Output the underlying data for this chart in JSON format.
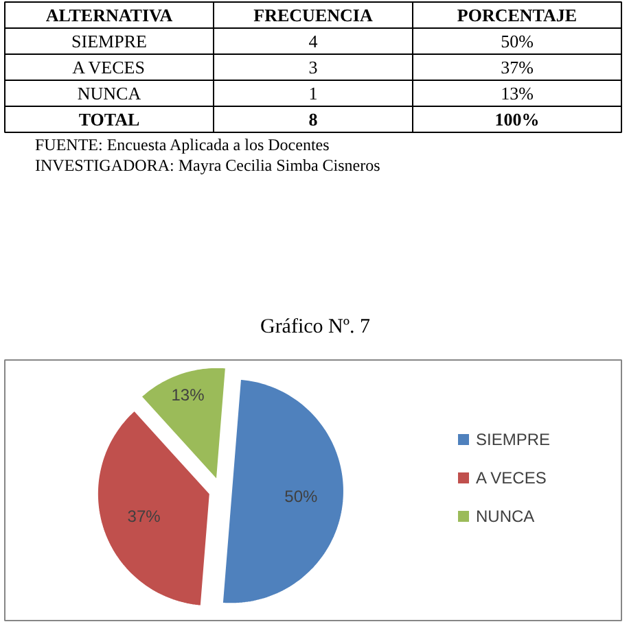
{
  "chart_data": {
    "type": "pie",
    "title": "Gráfico Nº. 7",
    "categories": [
      "SIEMPRE",
      "A VECES",
      "NUNCA"
    ],
    "values": [
      50,
      37,
      13
    ],
    "colors": [
      "#4f81bd",
      "#c0504d",
      "#9bbb59"
    ],
    "value_labels": [
      "50%",
      "37%",
      "13%"
    ],
    "legend": "right",
    "annotations": [
      "ALTERNATIVA\tFRECUENCIA\tPORCENTAJE",
      "SIEMPRE\t4\t50%",
      "A VECES\t3\t37%",
      "NUNCA\t1\t13%",
      "TOTAL\t8\t100%",
      "FUENTE: Encuesta Aplicada a los Docentes",
      "INVESTIGADORA: Mayra Cecilia Simba Cisneros"
    ]
  }
}
